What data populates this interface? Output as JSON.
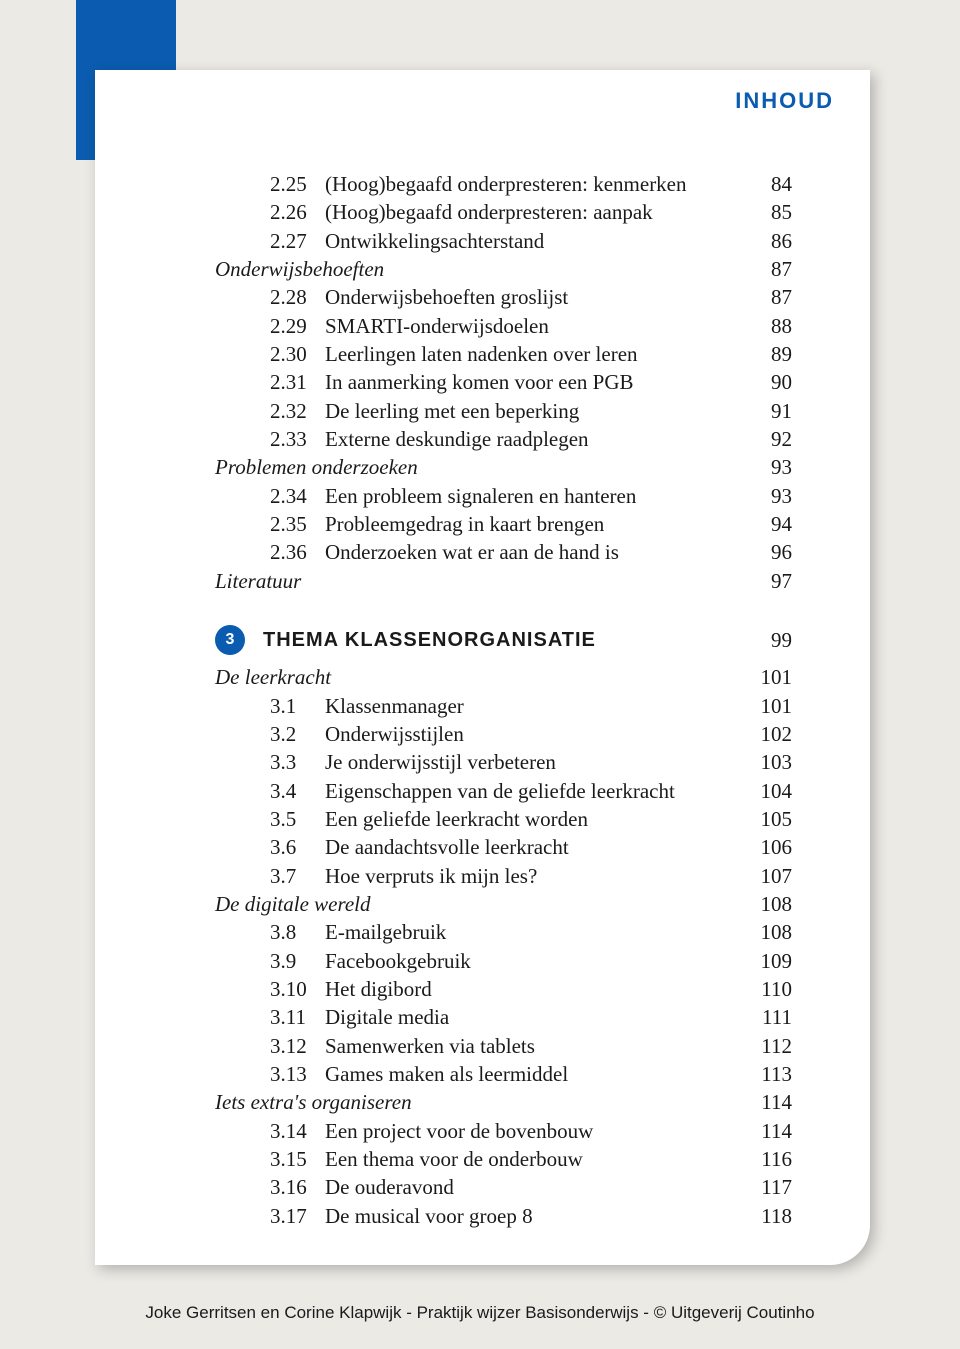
{
  "header": {
    "title": "INHOUD"
  },
  "colors": {
    "accent": "#0b5cb0",
    "page_bg": "#ffffff",
    "outer_bg": "#eceae5"
  },
  "toc": {
    "section1": {
      "rows": [
        {
          "type": "item",
          "num": "2.25",
          "label": "(Hoog)begaafd onderpresteren: kenmerken",
          "page": "84"
        },
        {
          "type": "item",
          "num": "2.26",
          "label": "(Hoog)begaafd onderpresteren: aanpak",
          "page": "85"
        },
        {
          "type": "item",
          "num": "2.27",
          "label": "Ontwikkelingsachterstand",
          "page": "86"
        },
        {
          "type": "heading",
          "label": "Onderwijsbehoeften",
          "page": "87"
        },
        {
          "type": "item",
          "num": "2.28",
          "label": "Onderwijsbehoeften groslijst",
          "page": "87"
        },
        {
          "type": "item",
          "num": "2.29",
          "label": "SMARTI-onderwijsdoelen",
          "page": "88"
        },
        {
          "type": "item",
          "num": "2.30",
          "label": "Leerlingen laten nadenken over leren",
          "page": "89"
        },
        {
          "type": "item",
          "num": "2.31",
          "label": "In aanmerking komen voor een PGB",
          "page": "90"
        },
        {
          "type": "item",
          "num": "2.32",
          "label": "De leerling met een beperking",
          "page": "91"
        },
        {
          "type": "item",
          "num": "2.33",
          "label": "Externe deskundige raadplegen",
          "page": "92"
        },
        {
          "type": "heading",
          "label": "Problemen onderzoeken",
          "page": "93"
        },
        {
          "type": "item",
          "num": "2.34",
          "label": "Een probleem signaleren en hanteren",
          "page": "93"
        },
        {
          "type": "item",
          "num": "2.35",
          "label": "Probleemgedrag in kaart brengen",
          "page": "94"
        },
        {
          "type": "item",
          "num": "2.36",
          "label": "Onderzoeken wat er aan de hand is",
          "page": "96"
        },
        {
          "type": "heading",
          "label": "Literatuur",
          "page": "97"
        }
      ]
    },
    "chapter": {
      "num": "3",
      "title": "THEMA KLASSENORGANISATIE",
      "page": "99"
    },
    "section2": {
      "rows": [
        {
          "type": "heading",
          "label": "De leerkracht",
          "page": "101"
        },
        {
          "type": "item",
          "num": "3.1",
          "label": "Klassenmanager",
          "page": "101"
        },
        {
          "type": "item",
          "num": "3.2",
          "label": "Onderwijsstijlen",
          "page": "102"
        },
        {
          "type": "item",
          "num": "3.3",
          "label": "Je onderwijsstijl verbeteren",
          "page": "103"
        },
        {
          "type": "item",
          "num": "3.4",
          "label": "Eigenschappen van de geliefde leerkracht",
          "page": "104"
        },
        {
          "type": "item",
          "num": "3.5",
          "label": "Een geliefde leerkracht worden",
          "page": "105"
        },
        {
          "type": "item",
          "num": "3.6",
          "label": "De aandachtsvolle leerkracht",
          "page": "106"
        },
        {
          "type": "item",
          "num": "3.7",
          "label": "Hoe verpruts ik mijn les?",
          "page": "107"
        },
        {
          "type": "heading",
          "label": "De digitale wereld",
          "page": "108"
        },
        {
          "type": "item",
          "num": "3.8",
          "label": "E-mailgebruik",
          "page": "108"
        },
        {
          "type": "item",
          "num": "3.9",
          "label": "Facebookgebruik",
          "page": "109"
        },
        {
          "type": "item",
          "num": "3.10",
          "label": "Het digibord",
          "page": "110"
        },
        {
          "type": "item",
          "num": "3.11",
          "label": "Digitale media",
          "page": "111"
        },
        {
          "type": "item",
          "num": "3.12",
          "label": "Samenwerken via tablets",
          "page": "112"
        },
        {
          "type": "item",
          "num": "3.13",
          "label": "Games maken als leermiddel",
          "page": "113"
        },
        {
          "type": "heading",
          "label": "Iets extra's organiseren",
          "page": "114"
        },
        {
          "type": "item",
          "num": "3.14",
          "label": "Een project voor de bovenbouw",
          "page": "114"
        },
        {
          "type": "item",
          "num": "3.15",
          "label": "Een thema voor de onderbouw",
          "page": "116"
        },
        {
          "type": "item",
          "num": "3.16",
          "label": "De ouderavond",
          "page": "117"
        },
        {
          "type": "item",
          "num": "3.17",
          "label": "De musical voor groep 8",
          "page": "118"
        }
      ]
    }
  },
  "footer": "Joke Gerritsen en Corine Klapwijk - Praktijk wijzer Basisonderwijs - © Uitgeverij Coutinho"
}
